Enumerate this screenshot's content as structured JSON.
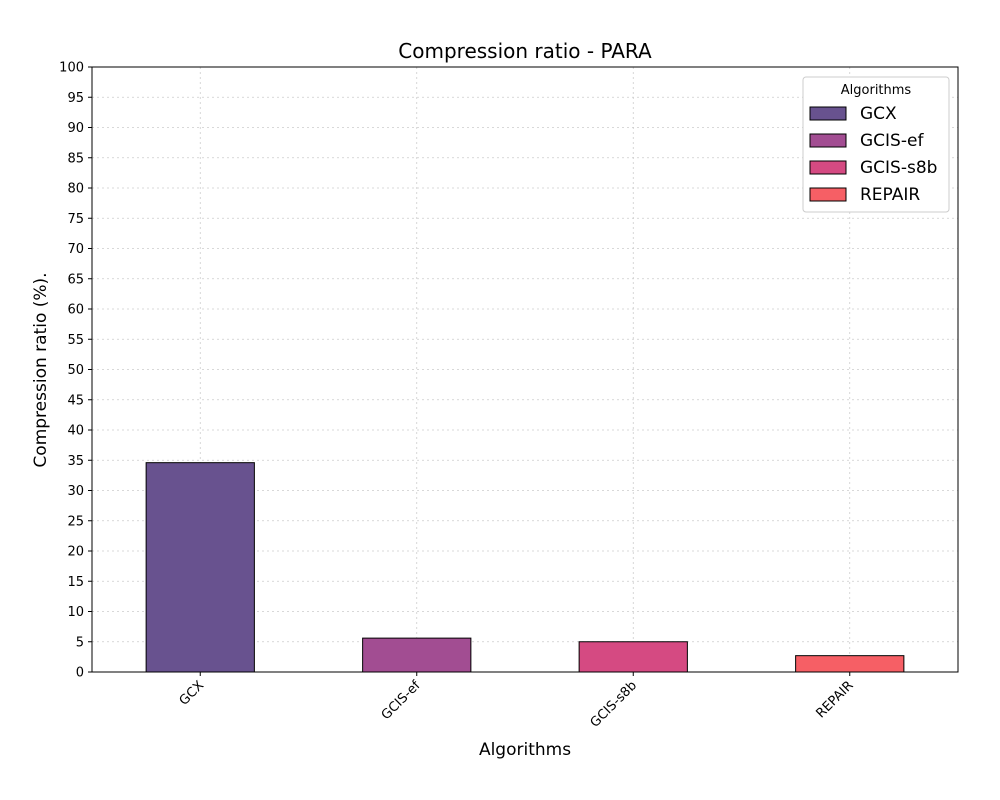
{
  "chart_data": {
    "type": "bar",
    "title": "Compression ratio -  PARA",
    "xlabel": "Algorithms",
    "ylabel": "Compression ratio (%).",
    "categories": [
      "GCX",
      "GCIS-ef",
      "GCIS-s8b",
      "REPAIR"
    ],
    "values": [
      34.6,
      5.6,
      5.0,
      2.7
    ],
    "colors": [
      "#68528f",
      "#a24d92",
      "#d54a82",
      "#f65f65"
    ],
    "ylim": [
      0,
      100
    ],
    "yticks": [
      0,
      5,
      10,
      15,
      20,
      25,
      30,
      35,
      40,
      45,
      50,
      55,
      60,
      65,
      70,
      75,
      80,
      85,
      90,
      95,
      100
    ],
    "grid": true,
    "legend": {
      "title": "Algorithms",
      "placement": "top-right",
      "entries": [
        "GCX",
        "GCIS-ef",
        "GCIS-s8b",
        "REPAIR"
      ]
    }
  }
}
